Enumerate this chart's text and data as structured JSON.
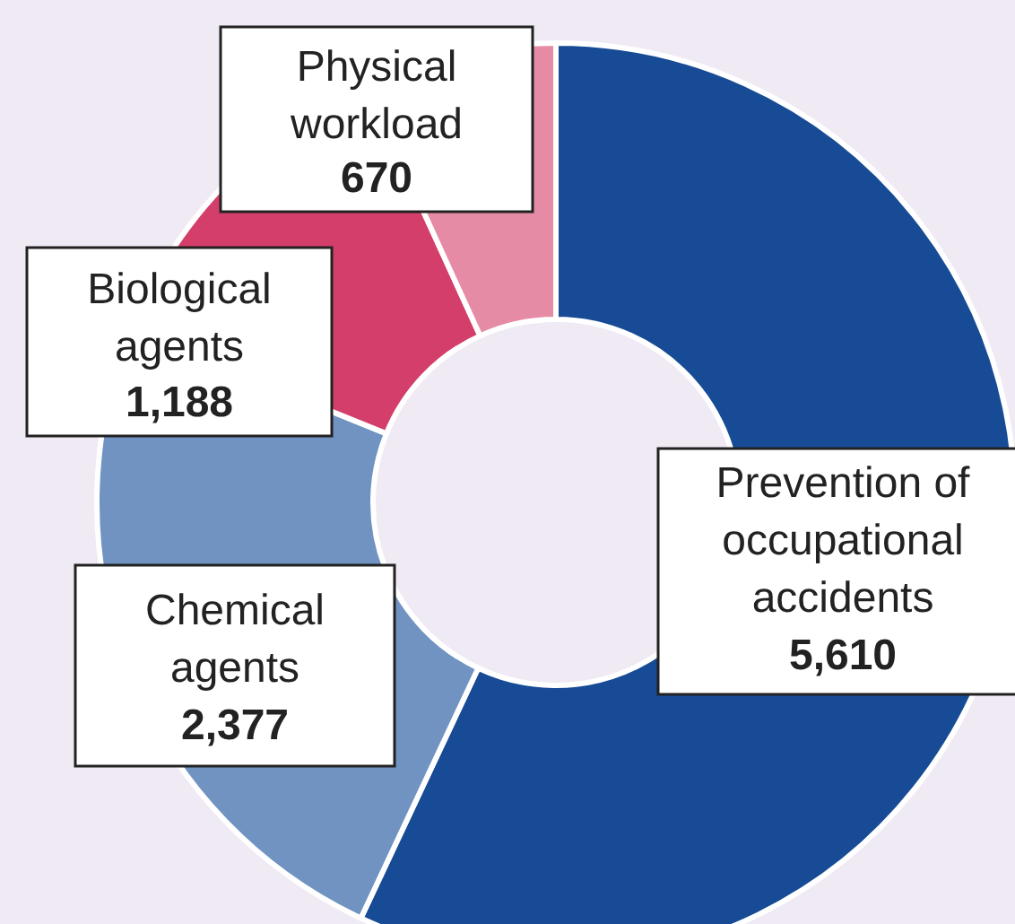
{
  "chart_data": {
    "type": "donut",
    "categories": [
      "Prevention of\noccupational\naccidents",
      "Chemical\nagents",
      "Biological\nagents",
      "Physical\nworkload"
    ],
    "values": [
      5610,
      2377,
      1188,
      670
    ],
    "colors": [
      "#174b95",
      "#7093c2",
      "#d33e6a",
      "#e68ba5"
    ],
    "value_labels": [
      "5,610",
      "2,377",
      "1,188",
      "670"
    ]
  }
}
